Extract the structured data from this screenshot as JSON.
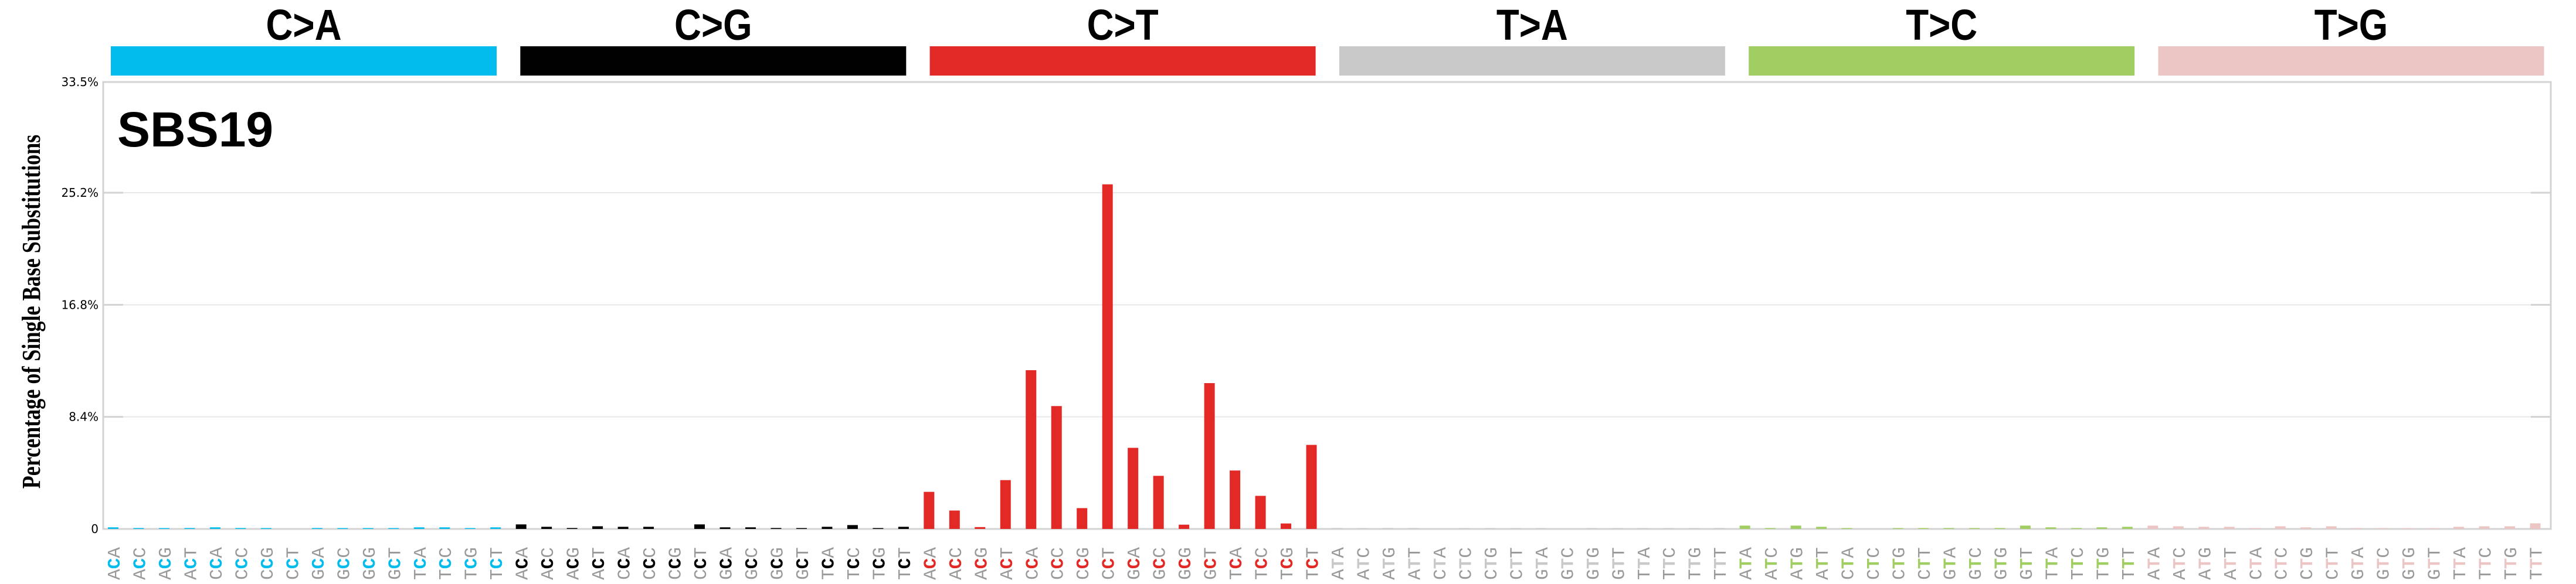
{
  "chart_data": {
    "type": "bar",
    "title": "SBS19",
    "ylabel": "Percentage of Single Base Substitutions",
    "xlabel": "",
    "ylim": [
      0,
      33.5
    ],
    "yticks": [
      0,
      8.4,
      16.8,
      25.2,
      33.5
    ],
    "ytick_labels": [
      "0",
      "8.4%",
      "16.8%",
      "25.2%",
      "33.5%"
    ],
    "grid": true,
    "legend_position": "top",
    "groups": [
      {
        "name": "C>A",
        "color": "#03BCEE",
        "middle": "C",
        "contexts": [
          "ACA",
          "ACC",
          "ACG",
          "ACT",
          "CCA",
          "CCC",
          "CCG",
          "CCT",
          "GCA",
          "GCC",
          "GCG",
          "GCT",
          "TCA",
          "TCC",
          "TCG",
          "TCT"
        ],
        "values": [
          0.12,
          0.07,
          0.03,
          0.07,
          0.12,
          0.07,
          0.03,
          0.0,
          0.07,
          0.03,
          0.03,
          0.03,
          0.12,
          0.12,
          0.03,
          0.12
        ]
      },
      {
        "name": "C>G",
        "color": "#010101",
        "middle": "C",
        "contexts": [
          "ACA",
          "ACC",
          "ACG",
          "ACT",
          "CCA",
          "CCC",
          "CCG",
          "CCT",
          "GCA",
          "GCC",
          "GCG",
          "GCT",
          "TCA",
          "TCC",
          "TCG",
          "TCT"
        ],
        "values": [
          0.34,
          0.16,
          0.07,
          0.2,
          0.16,
          0.16,
          0.0,
          0.34,
          0.12,
          0.12,
          0.07,
          0.03,
          0.16,
          0.29,
          0.03,
          0.16
        ]
      },
      {
        "name": "C>T",
        "color": "#E32926",
        "middle": "C",
        "contexts": [
          "ACA",
          "ACC",
          "ACG",
          "ACT",
          "CCA",
          "CCC",
          "CCG",
          "CCT",
          "GCA",
          "GCC",
          "GCG",
          "GCT",
          "TCA",
          "TCC",
          "TCG",
          "TCT"
        ],
        "values": [
          2.78,
          1.38,
          0.14,
          3.66,
          11.9,
          9.21,
          1.56,
          25.83,
          6.08,
          3.98,
          0.32,
          10.93,
          4.38,
          2.48,
          0.41,
          6.3
        ]
      },
      {
        "name": "T>A",
        "color": "#CAC9C9",
        "middle": "T",
        "contexts": [
          "ATA",
          "ATC",
          "ATG",
          "ATT",
          "CTA",
          "CTC",
          "CTG",
          "CTT",
          "GTA",
          "GTC",
          "GTG",
          "GTT",
          "TTA",
          "TTC",
          "TTG",
          "TTT"
        ],
        "values": [
          0.07,
          0.03,
          0.07,
          0.07,
          0.0,
          0.03,
          0.03,
          0.03,
          0.03,
          0.0,
          0.03,
          0.03,
          0.03,
          0.03,
          0.03,
          0.07
        ]
      },
      {
        "name": "T>C",
        "color": "#A1CE63",
        "middle": "T",
        "contexts": [
          "ATA",
          "ATC",
          "ATG",
          "ATT",
          "CTA",
          "CTC",
          "CTG",
          "CTT",
          "GTA",
          "GTC",
          "GTG",
          "GTT",
          "TTA",
          "TTC",
          "TTG",
          "TTT"
        ],
        "values": [
          0.25,
          0.07,
          0.25,
          0.16,
          0.03,
          0.0,
          0.03,
          0.03,
          0.07,
          0.03,
          0.07,
          0.25,
          0.12,
          0.07,
          0.12,
          0.16
        ]
      },
      {
        "name": "T>G",
        "color": "#EBC6C4",
        "middle": "T",
        "contexts": [
          "ATA",
          "ATC",
          "ATG",
          "ATT",
          "CTA",
          "CTC",
          "CTG",
          "CTT",
          "GTA",
          "GTC",
          "GTG",
          "GTT",
          "TTA",
          "TTC",
          "TTG",
          "TTT"
        ],
        "values": [
          0.25,
          0.2,
          0.16,
          0.16,
          0.07,
          0.2,
          0.12,
          0.2,
          0.07,
          0.07,
          0.03,
          0.03,
          0.16,
          0.2,
          0.2,
          0.42
        ]
      }
    ]
  },
  "style": {
    "frame_color": "#D3D3D3",
    "grid_color": "#E8E8E8",
    "context_letter_color": "#999999"
  }
}
